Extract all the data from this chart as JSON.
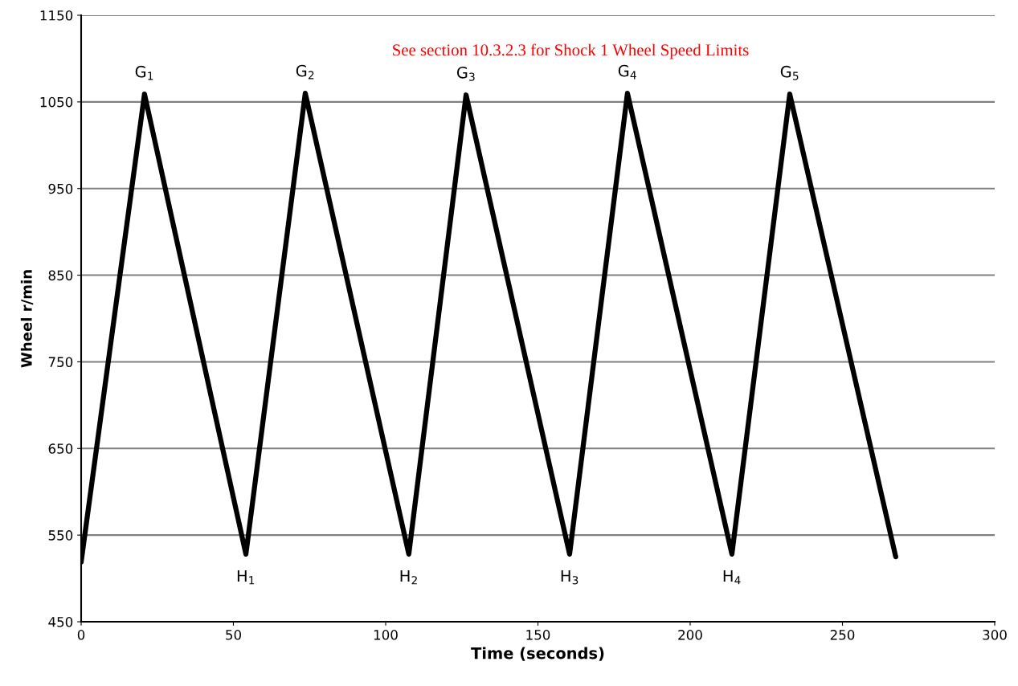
{
  "chart_data": {
    "type": "line",
    "xlabel": "Time (seconds)",
    "ylabel": "Wheel r/min",
    "x": [
      0,
      20.8,
      54.1,
      73.6,
      107.6,
      126.4,
      160.4,
      179.4,
      213.7,
      232.7,
      267.5
    ],
    "series": [
      {
        "color": "#000000",
        "values": [
          519,
          1059,
          528,
          1060,
          528,
          1058,
          528,
          1060,
          528,
          1059,
          525
        ]
      }
    ],
    "xlim": [
      0,
      300
    ],
    "xticks": [
      0,
      50,
      100,
      150,
      200,
      250,
      300
    ],
    "ylim": [
      450,
      1150
    ],
    "yticks": [
      450,
      550,
      650,
      750,
      850,
      950,
      1050,
      1150
    ],
    "grid": "y",
    "annotations": [
      {
        "text": "G$_{1}$",
        "x": 20.8,
        "y": 1059
      },
      {
        "text": "G$_{2}$",
        "x": 73.6,
        "y": 1060
      },
      {
        "text": "G$_{3}$",
        "x": 126.4,
        "y": 1058
      },
      {
        "text": "G$_{4}$",
        "x": 179.4,
        "y": 1060
      },
      {
        "text": "G$_{5}$",
        "x": 232.7,
        "y": 1059
      },
      {
        "text": "H$_{1}$",
        "x": 54.1,
        "y": 528
      },
      {
        "text": "H$_{2}$",
        "x": 107.6,
        "y": 528
      },
      {
        "text": "H$_{3}$",
        "x": 160.4,
        "y": 528
      },
      {
        "text": "H$_{4}$",
        "x": 213.7,
        "y": 528
      },
      "See section 10.3.2.3 for Shock 1 Wheel Speed Limits"
    ]
  }
}
